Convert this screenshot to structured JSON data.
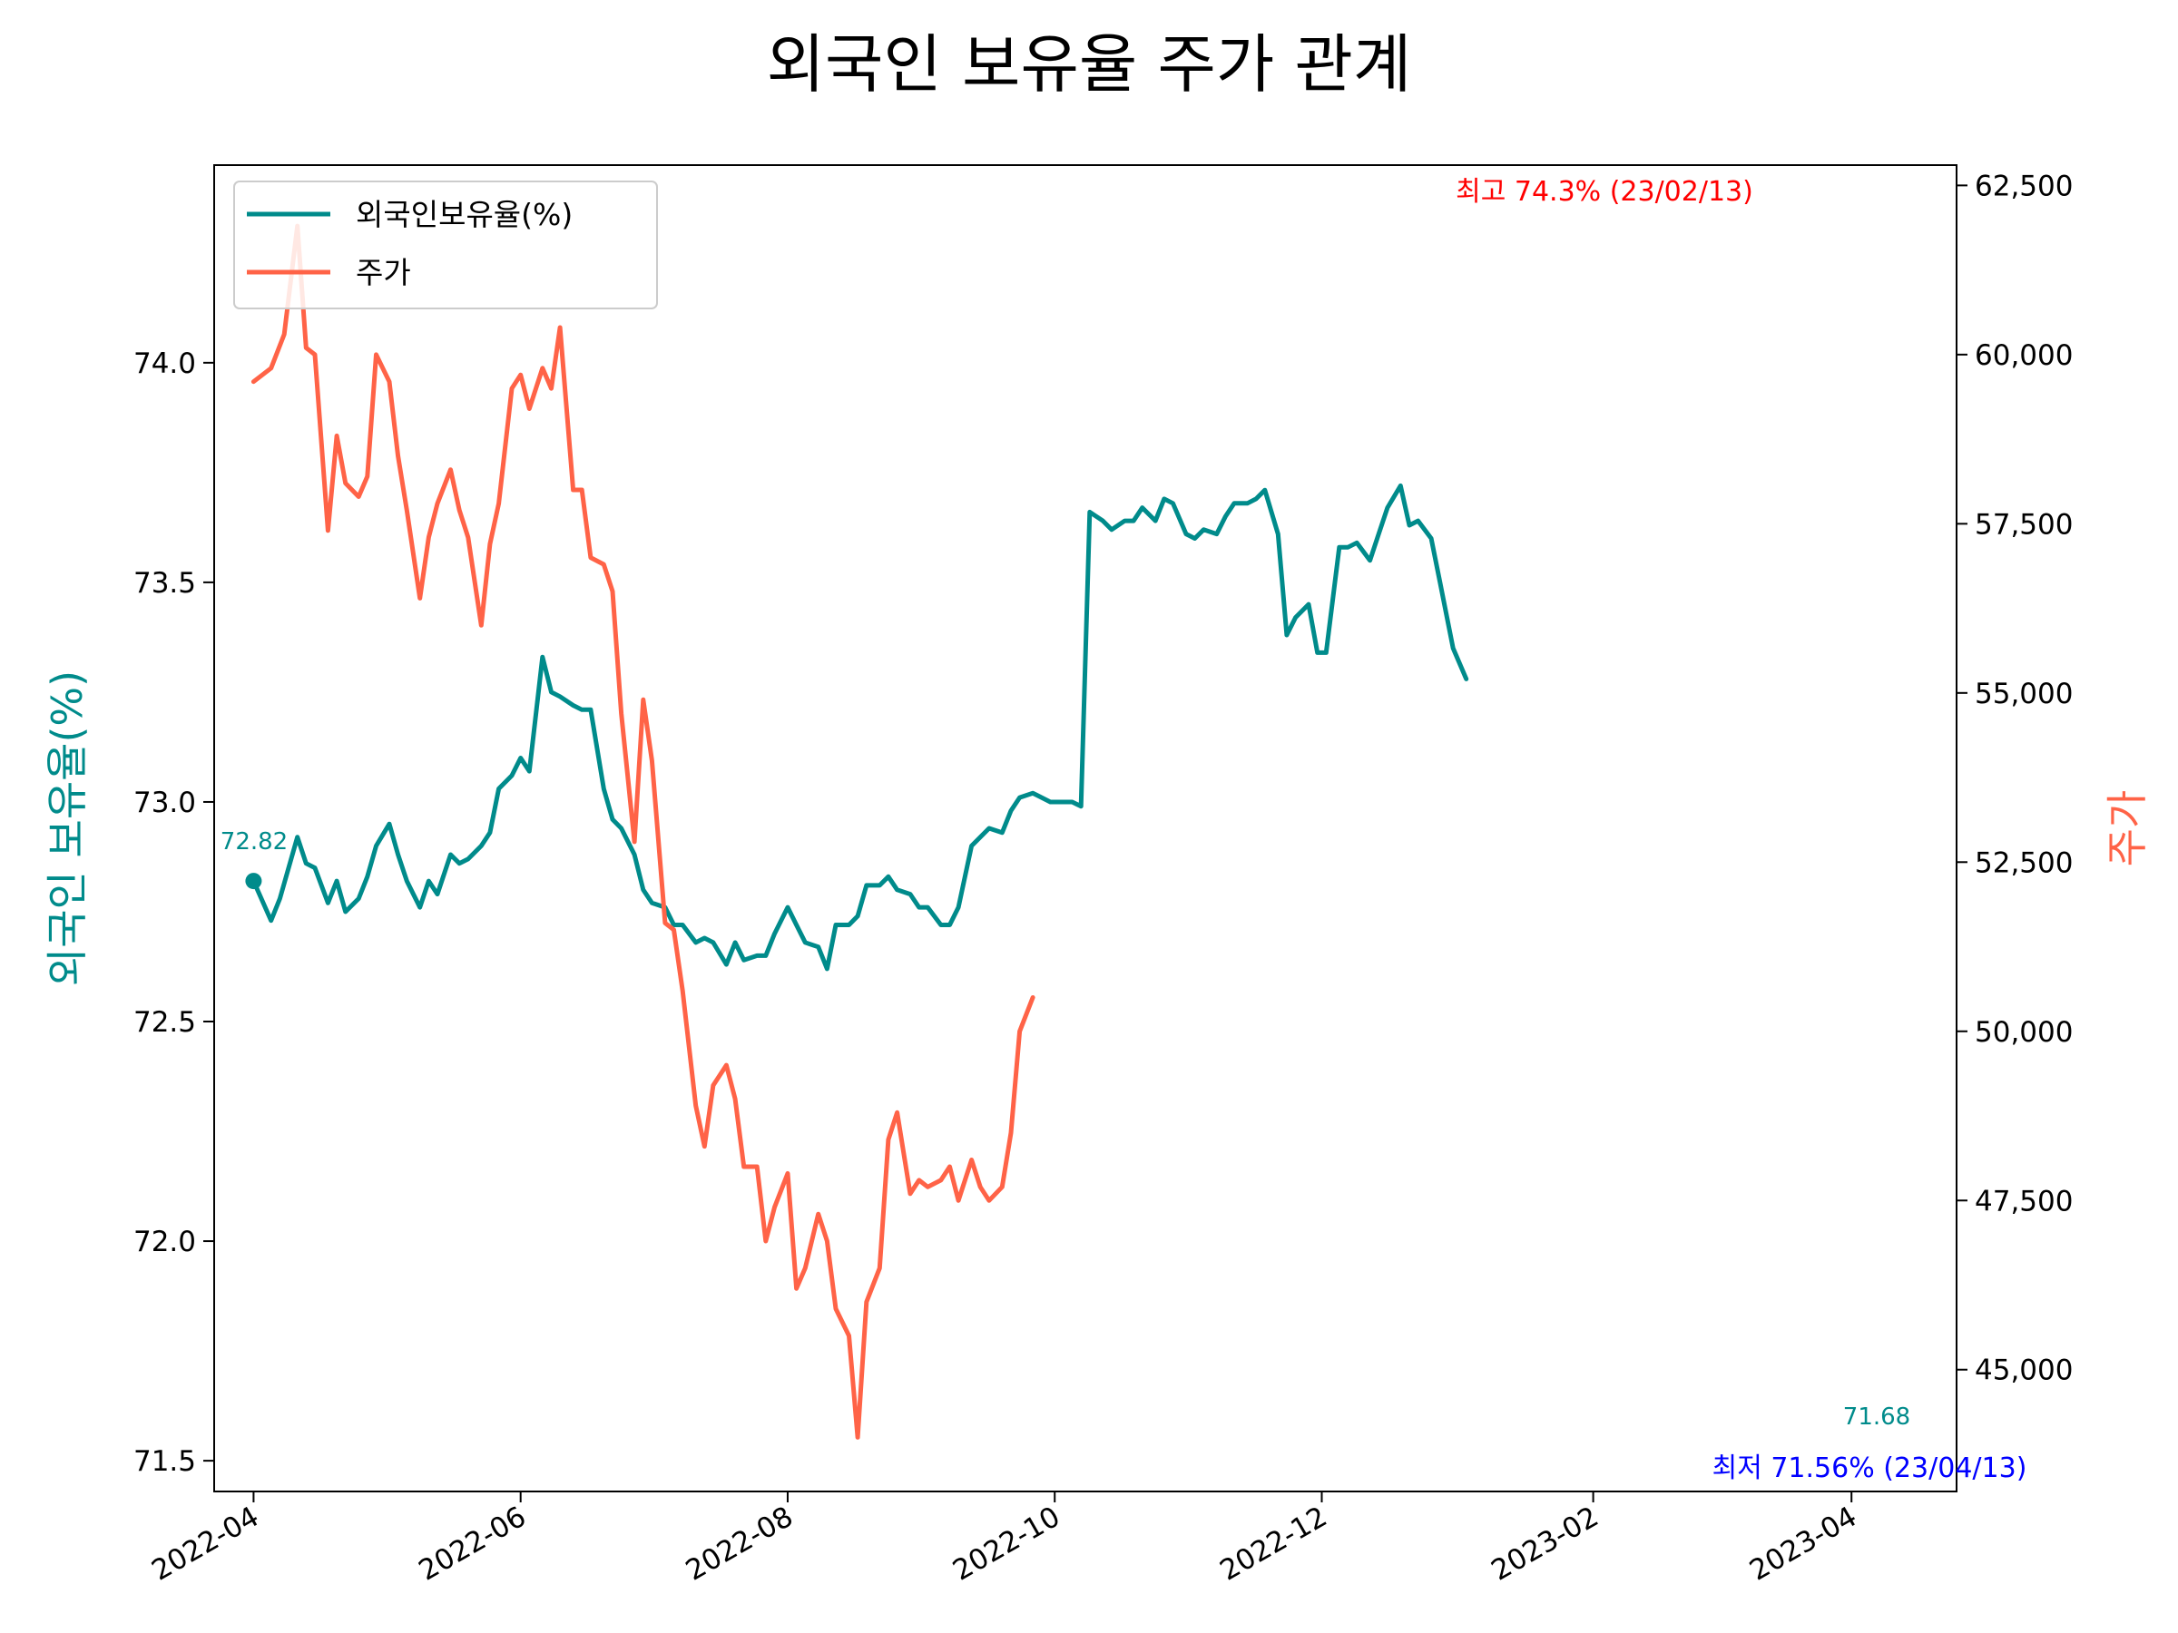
{
  "chart_data": {
    "type": "line",
    "title": "외국인 보유율 주가 관계",
    "xlabel": "",
    "x_ticks": [
      "2022-04",
      "2022-06",
      "2022-08",
      "2022-10",
      "2022-12",
      "2023-02",
      "2023-04"
    ],
    "x_range": [
      "2022-03-23",
      "2023-04-25"
    ],
    "y_left": {
      "label": "외국인 보유율(%)",
      "color": "#008b8b",
      "range": [
        71.43,
        74.45
      ],
      "ticks": [
        "71.5",
        "72.0",
        "72.5",
        "73.0",
        "73.5",
        "74.0"
      ]
    },
    "y_right": {
      "label": "주가",
      "color": "#ff6347",
      "range": [
        43200,
        62800
      ],
      "ticks": [
        "45,000",
        "47,500",
        "50,000",
        "52,500",
        "55,000",
        "57,500",
        "60,000",
        "62,500"
      ]
    },
    "legend": {
      "position": "upper-left",
      "entries": [
        "외국인보유율(%)",
        "주가"
      ]
    },
    "grid": false,
    "series": [
      {
        "name": "외국인보유율(%)",
        "axis": "left",
        "color": "#008b8b",
        "points": [
          [
            "2022-04-01",
            72.82
          ],
          [
            "2022-04-05",
            72.73
          ],
          [
            "2022-04-07",
            72.78
          ],
          [
            "2022-04-11",
            72.92
          ],
          [
            "2022-04-13",
            72.86
          ],
          [
            "2022-04-15",
            72.85
          ],
          [
            "2022-04-18",
            72.77
          ],
          [
            "2022-04-20",
            72.82
          ],
          [
            "2022-04-22",
            72.75
          ],
          [
            "2022-04-25",
            72.78
          ],
          [
            "2022-04-27",
            72.83
          ],
          [
            "2022-04-29",
            72.9
          ],
          [
            "2022-05-02",
            72.95
          ],
          [
            "2022-05-04",
            72.88
          ],
          [
            "2022-05-06",
            72.82
          ],
          [
            "2022-05-09",
            72.76
          ],
          [
            "2022-05-11",
            72.82
          ],
          [
            "2022-05-13",
            72.79
          ],
          [
            "2022-05-16",
            72.88
          ],
          [
            "2022-05-18",
            72.86
          ],
          [
            "2022-05-20",
            72.87
          ],
          [
            "2022-05-23",
            72.9
          ],
          [
            "2022-05-25",
            72.93
          ],
          [
            "2022-05-27",
            73.03
          ],
          [
            "2022-05-30",
            73.06
          ],
          [
            "2022-06-01",
            73.1
          ],
          [
            "2022-06-03",
            73.07
          ],
          [
            "2022-06-06",
            73.33
          ],
          [
            "2022-06-08",
            73.25
          ],
          [
            "2022-06-10",
            73.24
          ],
          [
            "2022-06-13",
            73.22
          ],
          [
            "2022-06-15",
            73.21
          ],
          [
            "2022-06-17",
            73.21
          ],
          [
            "2022-06-20",
            73.03
          ],
          [
            "2022-06-22",
            72.96
          ],
          [
            "2022-06-24",
            72.94
          ],
          [
            "2022-06-27",
            72.88
          ],
          [
            "2022-06-29",
            72.8
          ],
          [
            "2022-07-01",
            72.77
          ],
          [
            "2022-07-04",
            72.76
          ],
          [
            "2022-07-06",
            72.72
          ],
          [
            "2022-07-08",
            72.72
          ],
          [
            "2022-07-11",
            72.68
          ],
          [
            "2022-07-13",
            72.69
          ],
          [
            "2022-07-15",
            72.68
          ],
          [
            "2022-07-18",
            72.63
          ],
          [
            "2022-07-20",
            72.68
          ],
          [
            "2022-07-22",
            72.64
          ],
          [
            "2022-07-25",
            72.65
          ],
          [
            "2022-07-27",
            72.65
          ],
          [
            "2022-07-29",
            72.7
          ],
          [
            "2022-08-01",
            72.76
          ],
          [
            "2022-08-03",
            72.72
          ],
          [
            "2022-08-05",
            72.68
          ],
          [
            "2022-08-08",
            72.67
          ],
          [
            "2022-08-10",
            72.62
          ],
          [
            "2022-08-12",
            72.72
          ],
          [
            "2022-08-15",
            72.72
          ],
          [
            "2022-08-17",
            72.74
          ],
          [
            "2022-08-19",
            72.81
          ],
          [
            "2022-08-22",
            72.81
          ],
          [
            "2022-08-24",
            72.83
          ],
          [
            "2022-08-26",
            72.8
          ],
          [
            "2022-08-29",
            72.79
          ],
          [
            "2022-08-31",
            72.76
          ],
          [
            "2022-09-02",
            72.76
          ],
          [
            "2022-09-05",
            72.72
          ],
          [
            "2022-09-07",
            72.72
          ],
          [
            "2022-09-09",
            72.76
          ],
          [
            "2022-09-12",
            72.9
          ],
          [
            "2022-09-14",
            72.92
          ],
          [
            "2022-09-16",
            72.94
          ],
          [
            "2022-09-19",
            72.93
          ],
          [
            "2022-09-21",
            72.98
          ],
          [
            "2022-09-23",
            73.01
          ],
          [
            "2022-09-26",
            73.02
          ],
          [
            "2022-09-28",
            73.01
          ],
          [
            "2022-09-30",
            73.0
          ],
          [
            "2022-10-03",
            73.0
          ],
          [
            "2022-10-05",
            73.0
          ],
          [
            "2022-10-07",
            72.99
          ],
          [
            "2022-10-09",
            73.66
          ],
          [
            "2022-10-12",
            73.64
          ],
          [
            "2022-10-14",
            73.62
          ],
          [
            "2022-10-17",
            73.64
          ],
          [
            "2022-10-19",
            73.64
          ],
          [
            "2022-10-21",
            73.67
          ],
          [
            "2022-10-24",
            73.64
          ],
          [
            "2022-10-26",
            73.69
          ],
          [
            "2022-10-28",
            73.68
          ],
          [
            "2022-10-31",
            73.61
          ],
          [
            "2022-11-02",
            73.6
          ],
          [
            "2022-11-04",
            73.62
          ],
          [
            "2022-11-07",
            73.61
          ],
          [
            "2022-11-09",
            73.65
          ],
          [
            "2022-11-11",
            73.68
          ],
          [
            "2022-11-14",
            73.68
          ],
          [
            "2022-11-16",
            73.69
          ],
          [
            "2022-11-18",
            73.71
          ],
          [
            "2022-11-21",
            73.61
          ],
          [
            "2022-11-23",
            73.38
          ],
          [
            "2022-11-25",
            73.42
          ],
          [
            "2022-11-28",
            73.45
          ],
          [
            "2022-11-30",
            73.34
          ],
          [
            "2022-12-02",
            73.34
          ],
          [
            "2022-12-05",
            73.58
          ],
          [
            "2022-12-07",
            73.58
          ],
          [
            "2022-12-09",
            73.59
          ],
          [
            "2022-12-12",
            73.55
          ],
          [
            "2022-12-14",
            73.61
          ],
          [
            "2022-12-16",
            73.67
          ],
          [
            "2022-12-19",
            73.72
          ],
          [
            "2022-12-21",
            73.63
          ],
          [
            "2022-12-23",
            73.64
          ],
          [
            "2022-12-26",
            73.6
          ],
          [
            "2022-12-28",
            73.5
          ],
          [
            "2022-12-30",
            73.4
          ],
          [
            "2022-12-31",
            73.35
          ],
          [
            "2023-01-03",
            73.28
          ]
        ]
      },
      {
        "name": "주가",
        "axis": "right",
        "color": "#ff6347",
        "points": [
          [
            "2022-04-01",
            59600
          ],
          [
            "2022-04-05",
            59800
          ],
          [
            "2022-04-08",
            60300
          ],
          [
            "2022-04-11",
            61900
          ],
          [
            "2022-04-13",
            60100
          ],
          [
            "2022-04-15",
            60000
          ],
          [
            "2022-04-18",
            57400
          ],
          [
            "2022-04-20",
            58800
          ],
          [
            "2022-04-22",
            58100
          ],
          [
            "2022-04-25",
            57900
          ],
          [
            "2022-04-27",
            58200
          ],
          [
            "2022-04-29",
            60000
          ],
          [
            "2022-05-02",
            59600
          ],
          [
            "2022-05-04",
            58500
          ],
          [
            "2022-05-06",
            57700
          ],
          [
            "2022-05-09",
            56400
          ],
          [
            "2022-05-11",
            57300
          ],
          [
            "2022-05-13",
            57800
          ],
          [
            "2022-05-16",
            58300
          ],
          [
            "2022-05-18",
            57700
          ],
          [
            "2022-05-20",
            57300
          ],
          [
            "2022-05-23",
            56000
          ],
          [
            "2022-05-25",
            57200
          ],
          [
            "2022-05-27",
            57800
          ],
          [
            "2022-05-30",
            59500
          ],
          [
            "2022-06-01",
            59700
          ],
          [
            "2022-06-03",
            59200
          ],
          [
            "2022-06-06",
            59800
          ],
          [
            "2022-06-08",
            59500
          ],
          [
            "2022-06-10",
            60400
          ],
          [
            "2022-06-13",
            58000
          ],
          [
            "2022-06-15",
            58000
          ],
          [
            "2022-06-17",
            57000
          ],
          [
            "2022-06-20",
            56900
          ],
          [
            "2022-06-22",
            56500
          ],
          [
            "2022-06-24",
            54700
          ],
          [
            "2022-06-27",
            52800
          ],
          [
            "2022-06-29",
            54900
          ],
          [
            "2022-07-01",
            54000
          ],
          [
            "2022-07-04",
            51600
          ],
          [
            "2022-07-06",
            51500
          ],
          [
            "2022-07-08",
            50600
          ],
          [
            "2022-07-11",
            48900
          ],
          [
            "2022-07-13",
            48300
          ],
          [
            "2022-07-15",
            49200
          ],
          [
            "2022-07-18",
            49500
          ],
          [
            "2022-07-20",
            49000
          ],
          [
            "2022-07-22",
            48000
          ],
          [
            "2022-07-25",
            48000
          ],
          [
            "2022-07-27",
            46900
          ],
          [
            "2022-07-29",
            47400
          ],
          [
            "2022-08-01",
            47900
          ],
          [
            "2022-08-03",
            46200
          ],
          [
            "2022-08-05",
            46500
          ],
          [
            "2022-08-08",
            47300
          ],
          [
            "2022-08-10",
            46900
          ],
          [
            "2022-08-12",
            45900
          ],
          [
            "2022-08-15",
            45500
          ],
          [
            "2022-08-17",
            44000
          ],
          [
            "2022-08-19",
            46000
          ],
          [
            "2022-08-22",
            46500
          ],
          [
            "2022-08-24",
            48400
          ],
          [
            "2022-08-26",
            48800
          ],
          [
            "2022-08-29",
            47600
          ],
          [
            "2022-08-31",
            47800
          ],
          [
            "2022-09-02",
            47700
          ],
          [
            "2022-09-05",
            47800
          ],
          [
            "2022-09-07",
            48000
          ],
          [
            "2022-09-09",
            47500
          ],
          [
            "2022-09-12",
            48100
          ],
          [
            "2022-09-14",
            47700
          ],
          [
            "2022-09-16",
            47500
          ],
          [
            "2022-09-19",
            47700
          ],
          [
            "2022-09-21",
            48500
          ],
          [
            "2022-09-23",
            50000
          ],
          [
            "2022-09-26",
            50500
          ]
        ]
      }
    ],
    "annotations": [
      {
        "text": "최고 74.3% (23/02/13)",
        "color": "#ff0000"
      },
      {
        "text": "최저 71.56% (23/04/13)",
        "color": "#0000ff"
      },
      {
        "text": "72.82",
        "color": "#008b8b"
      },
      {
        "text": "71.68",
        "color": "#008b8b"
      }
    ]
  }
}
